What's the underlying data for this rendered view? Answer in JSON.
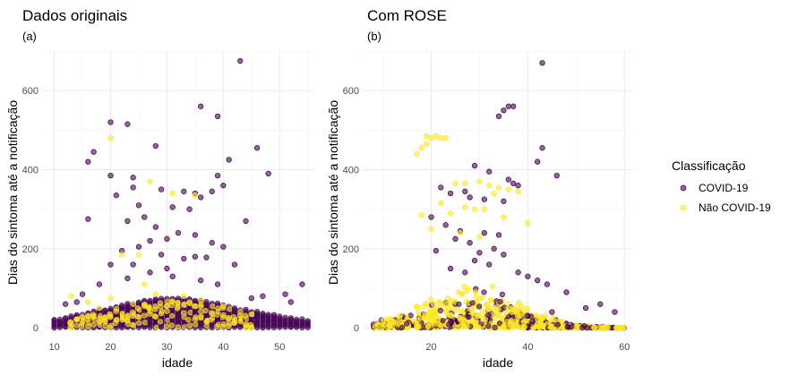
{
  "legend": {
    "title": "Classificação",
    "items": [
      {
        "label": "COVID-19",
        "color": "#440154"
      },
      {
        "label": "Não COVID-19",
        "color": "#FDE725"
      }
    ]
  },
  "chart_data": [
    {
      "type": "scatter",
      "title": "Dados originais",
      "subtitle": "(a)",
      "xlabel": "idade",
      "ylabel": "Dias do sintoma até a notificação",
      "xlim": [
        8,
        56
      ],
      "ylim": [
        -20,
        700
      ],
      "xticks": [
        10,
        20,
        30,
        40,
        50
      ],
      "yticks": [
        0,
        200,
        400,
        600
      ],
      "grid": true,
      "series": [
        {
          "name": "COVID-19",
          "color": "#440154",
          "points": [
            [
              20,
              520
            ],
            [
              23,
              515
            ],
            [
              43,
              675
            ],
            [
              36,
              560
            ],
            [
              39,
              535
            ],
            [
              17,
              445
            ],
            [
              16,
              420
            ],
            [
              20,
              385
            ],
            [
              24,
              380
            ],
            [
              28,
              460
            ],
            [
              41,
              425
            ],
            [
              39,
              385
            ],
            [
              46,
              455
            ],
            [
              48,
              390
            ],
            [
              24,
              355
            ],
            [
              29,
              350
            ],
            [
              35,
              340
            ],
            [
              40,
              360
            ],
            [
              36,
              330
            ],
            [
              33,
              345
            ],
            [
              38,
              345
            ],
            [
              16,
              275
            ],
            [
              23,
              270
            ],
            [
              44,
              270
            ],
            [
              21,
              335
            ],
            [
              25,
              310
            ],
            [
              31,
              305
            ],
            [
              34,
              300
            ],
            [
              26,
              280
            ],
            [
              28,
              255
            ],
            [
              32,
              240
            ],
            [
              35,
              235
            ],
            [
              30,
              225
            ],
            [
              27,
              220
            ],
            [
              38,
              215
            ],
            [
              25,
              205
            ],
            [
              22,
              195
            ],
            [
              29,
              185
            ],
            [
              35,
              180
            ],
            [
              37,
              178
            ],
            [
              40,
              205
            ],
            [
              33,
              175
            ],
            [
              20,
              160
            ],
            [
              24,
              160
            ],
            [
              30,
              150
            ],
            [
              42,
              160
            ],
            [
              27,
              140
            ],
            [
              31,
              130
            ],
            [
              23,
              125
            ],
            [
              36,
              120
            ],
            [
              39,
              110
            ],
            [
              18,
              110
            ],
            [
              15,
              85
            ],
            [
              54,
              110
            ],
            [
              51,
              85
            ],
            [
              47,
              80
            ],
            [
              45,
              75
            ],
            [
              14,
              65
            ],
            [
              12,
              60
            ],
            [
              52,
              65
            ]
          ]
        },
        {
          "name": "Não COVID-19",
          "color": "#FDE725",
          "points": [
            [
              20,
              480
            ],
            [
              27,
              370
            ],
            [
              31,
              340
            ],
            [
              35,
              335
            ],
            [
              22,
              185
            ],
            [
              25,
              185
            ],
            [
              26,
              110
            ],
            [
              20,
              75
            ],
            [
              28,
              85
            ],
            [
              33,
              80
            ],
            [
              36,
              70
            ],
            [
              24,
              60
            ],
            [
              30,
              55
            ],
            [
              18,
              50
            ],
            [
              40,
              55
            ],
            [
              13,
              80
            ],
            [
              16,
              65
            ]
          ]
        }
      ]
    },
    {
      "type": "scatter",
      "title": "Com  ROSE",
      "subtitle": "(b)",
      "xlabel": "idade",
      "ylabel": "Dias do sintoma até a notificação",
      "xlim": [
        6,
        62
      ],
      "ylim": [
        -20,
        700
      ],
      "xticks": [
        20,
        40,
        60
      ],
      "yticks": [
        0,
        200,
        400,
        600
      ],
      "grid": true,
      "series": [
        {
          "name": "COVID-19",
          "color": "#440154",
          "points": [
            [
              43,
              670
            ],
            [
              36,
              560
            ],
            [
              35,
              550
            ],
            [
              37,
              560
            ],
            [
              34,
              535
            ],
            [
              29,
              410
            ],
            [
              43,
              455
            ],
            [
              46,
              385
            ],
            [
              42,
              420
            ],
            [
              32,
              395
            ],
            [
              36,
              375
            ],
            [
              22,
              355
            ],
            [
              24,
              340
            ],
            [
              27,
              345
            ],
            [
              37,
              365
            ],
            [
              38,
              360
            ],
            [
              28,
              330
            ],
            [
              31,
              325
            ],
            [
              35,
              320
            ],
            [
              20,
              280
            ],
            [
              23,
              260
            ],
            [
              26,
              245
            ],
            [
              31,
              240
            ],
            [
              34,
              235
            ],
            [
              25,
              225
            ],
            [
              28,
              215
            ],
            [
              33,
              200
            ],
            [
              21,
              195
            ],
            [
              30,
              190
            ],
            [
              35,
              185
            ],
            [
              29,
              170
            ],
            [
              32,
              160
            ],
            [
              24,
              150
            ],
            [
              27,
              140
            ],
            [
              38,
              140
            ],
            [
              40,
              130
            ],
            [
              42,
              120
            ],
            [
              44,
              110
            ],
            [
              48,
              90
            ],
            [
              55,
              60
            ],
            [
              58,
              40
            ],
            [
              52,
              50
            ],
            [
              45,
              40
            ],
            [
              40,
              30
            ]
          ]
        },
        {
          "name": "Não COVID-19",
          "color": "#FDE725",
          "points": [
            [
              19,
              485
            ],
            [
              20,
              480
            ],
            [
              21,
              485
            ],
            [
              22,
              480
            ],
            [
              23,
              480
            ],
            [
              18,
              455
            ],
            [
              19,
              465
            ],
            [
              17,
              440
            ],
            [
              25,
              365
            ],
            [
              27,
              365
            ],
            [
              30,
              370
            ],
            [
              32,
              360
            ],
            [
              34,
              355
            ],
            [
              36,
              350
            ],
            [
              38,
              345
            ],
            [
              33,
              340
            ],
            [
              22,
              315
            ],
            [
              27,
              305
            ],
            [
              29,
              300
            ],
            [
              31,
              300
            ],
            [
              24,
              290
            ],
            [
              18,
              285
            ],
            [
              35,
              280
            ],
            [
              40,
              265
            ],
            [
              20,
              250
            ],
            [
              26,
              240
            ],
            [
              30,
              230
            ]
          ]
        }
      ]
    }
  ]
}
